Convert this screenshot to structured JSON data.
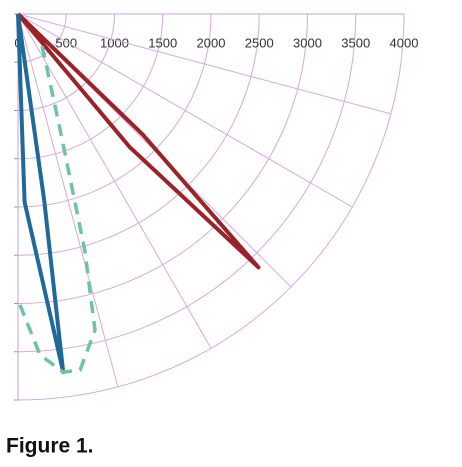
{
  "chart_data": {
    "type": "polar",
    "rlim": [
      0,
      4000
    ],
    "rticks": [
      0,
      500,
      1000,
      1500,
      2000,
      2500,
      3000,
      3500,
      4000
    ],
    "thetalim": [
      0,
      90
    ],
    "thetaticks": [
      0,
      15,
      30,
      45,
      60,
      75,
      90
    ],
    "grid": true,
    "series": [
      {
        "color": "#9b2226",
        "dash": false,
        "theta": [
          45,
          40,
          43.5,
          46,
          45
        ],
        "r": [
          0,
          1800,
          3620,
          1800,
          0
        ]
      },
      {
        "color": "#1f6a9a",
        "dash": false,
        "theta": [
          0,
          2,
          7.2,
          8,
          0
        ],
        "r": [
          0,
          1950,
          3740,
          1950,
          0
        ]
      },
      {
        "color": "#6cc4a0",
        "dash": true,
        "theta": [
          37,
          20,
          15.8,
          13.7,
          9.9,
          7.2,
          3.7,
          0.4
        ],
        "r": [
          415,
          1280,
          2540,
          3370,
          3745,
          3740,
          3540,
          3015
        ]
      }
    ]
  },
  "caption": "Figure 1."
}
